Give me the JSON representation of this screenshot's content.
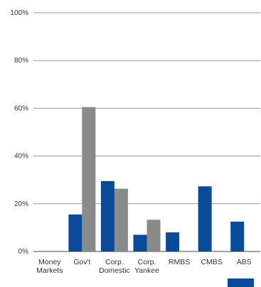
{
  "chart_data": {
    "type": "bar",
    "categories": [
      [
        "Money",
        "Markets"
      ],
      [
        "Gov't"
      ],
      [
        "Corp.",
        "Domestic"
      ],
      [
        "Corp.",
        "Yankee"
      ],
      [
        "RMBS"
      ],
      [
        "CMBS"
      ],
      [
        "ABS"
      ]
    ],
    "series": [
      {
        "color": "#0a4a9b",
        "values": [
          0,
          15.5,
          29.5,
          7,
          8,
          27.3,
          12.5
        ]
      },
      {
        "color": "#8a8a8a",
        "values": [
          0,
          60.5,
          26.3,
          13.3,
          0,
          0,
          0
        ]
      }
    ],
    "ylim": [
      0,
      100
    ],
    "yticks": [
      "0%",
      "20%",
      "40%",
      "60%",
      "80%",
      "100%"
    ],
    "grid": true,
    "title": "",
    "xlabel": "",
    "ylabel": ""
  }
}
